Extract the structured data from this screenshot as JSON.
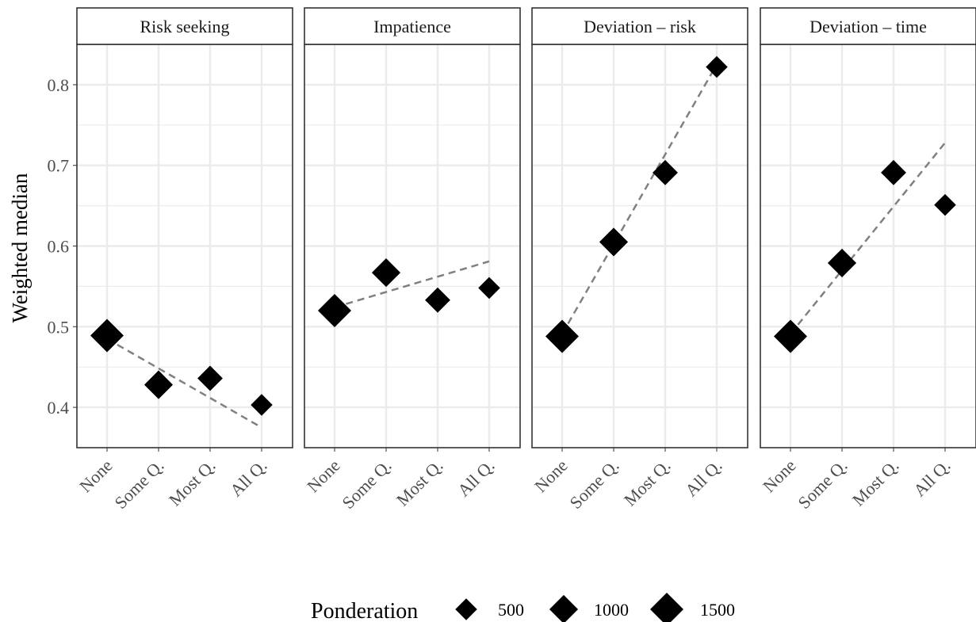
{
  "chart_data": {
    "type": "scatter",
    "ylabel": "Weighted median",
    "xlabel": "",
    "categories": [
      "None",
      "Some Q.",
      "Most Q.",
      "All Q."
    ],
    "yticks": [
      0.4,
      0.5,
      0.6,
      0.7,
      0.8
    ],
    "ylim": [
      0.35,
      0.85
    ],
    "grid": true,
    "legend": {
      "title": "Ponderation",
      "placement": "bottom",
      "entries": [
        "500",
        "1000",
        "1500"
      ]
    },
    "panels": [
      {
        "title": "Risk seeking",
        "points": [
          {
            "x": "None",
            "y": 0.489,
            "weight": 1500
          },
          {
            "x": "Some Q.",
            "y": 0.428,
            "weight": 1000
          },
          {
            "x": "Most Q.",
            "y": 0.436,
            "weight": 700
          },
          {
            "x": "All Q.",
            "y": 0.403,
            "weight": 450
          }
        ],
        "trend": [
          0.485,
          0.375
        ]
      },
      {
        "title": "Impatience",
        "points": [
          {
            "x": "None",
            "y": 0.52,
            "weight": 1500
          },
          {
            "x": "Some Q.",
            "y": 0.567,
            "weight": 1000
          },
          {
            "x": "Most Q.",
            "y": 0.533,
            "weight": 700
          },
          {
            "x": "All Q.",
            "y": 0.548,
            "weight": 450
          }
        ],
        "trend": [
          0.524,
          0.581
        ]
      },
      {
        "title": "Deviation – risk",
        "points": [
          {
            "x": "None",
            "y": 0.488,
            "weight": 1500
          },
          {
            "x": "Some Q.",
            "y": 0.605,
            "weight": 1000
          },
          {
            "x": "Most Q.",
            "y": 0.691,
            "weight": 700
          },
          {
            "x": "All Q.",
            "y": 0.822,
            "weight": 450
          }
        ],
        "trend": [
          0.491,
          0.825
        ]
      },
      {
        "title": "Deviation – time",
        "points": [
          {
            "x": "None",
            "y": 0.488,
            "weight": 1500
          },
          {
            "x": "Some Q.",
            "y": 0.579,
            "weight": 1000
          },
          {
            "x": "Most Q.",
            "y": 0.691,
            "weight": 700
          },
          {
            "x": "All Q.",
            "y": 0.651,
            "weight": 450
          }
        ],
        "trend": [
          0.491,
          0.728
        ]
      }
    ],
    "colors": {
      "points": "#000000",
      "trend": "#808080",
      "grid": "#ebebeb",
      "strip_bg": "#ffffff",
      "border": "#333333",
      "text": "#4d4d4d"
    }
  }
}
